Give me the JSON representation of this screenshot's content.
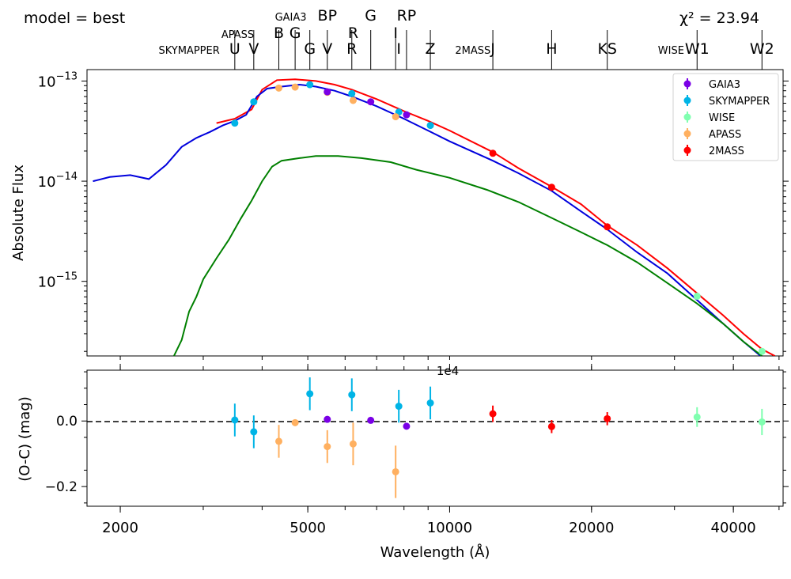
{
  "header": {
    "model_label": "model = best",
    "chi2_label": "χ² = 23.94"
  },
  "filters": {
    "rows": [
      [
        {
          "text": "GAIA3",
          "wl": 4600,
          "size": "small"
        },
        {
          "text": "BP",
          "wl": 5500,
          "size": "big"
        },
        {
          "text": "G",
          "wl": 6800,
          "size": "big"
        },
        {
          "text": "RP",
          "wl": 8100,
          "size": "big"
        }
      ],
      [
        {
          "text": "APASS",
          "wl": 3550,
          "size": "small"
        },
        {
          "text": "B",
          "wl": 4340,
          "size": "big"
        },
        {
          "text": "G",
          "wl": 4700,
          "size": "big"
        },
        {
          "text": "R",
          "wl": 6240,
          "size": "big"
        },
        {
          "text": "I",
          "wl": 7680,
          "size": "big"
        }
      ],
      [
        {
          "text": "SKYMAPPER",
          "wl": 2800,
          "size": "small"
        },
        {
          "text": "U",
          "wl": 3500,
          "size": "big"
        },
        {
          "text": "V",
          "wl": 3840,
          "size": "big"
        },
        {
          "text": "G",
          "wl": 5050,
          "size": "big"
        },
        {
          "text": "V",
          "wl": 5500,
          "size": "big"
        },
        {
          "text": "R",
          "wl": 6200,
          "size": "big"
        },
        {
          "text": "I",
          "wl": 7800,
          "size": "big"
        },
        {
          "text": "Z",
          "wl": 9100,
          "size": "big"
        },
        {
          "text": "2MASS",
          "wl": 11200,
          "size": "small"
        },
        {
          "text": "J",
          "wl": 12350,
          "size": "big"
        },
        {
          "text": "H",
          "wl": 16460,
          "size": "big"
        },
        {
          "text": "KS",
          "wl": 21600,
          "size": "big"
        },
        {
          "text": "WISE",
          "wl": 29500,
          "size": "small"
        },
        {
          "text": "W1",
          "wl": 33500,
          "size": "big"
        },
        {
          "text": "W2",
          "wl": 46000,
          "size": "big"
        }
      ]
    ],
    "tick_wavelengths": [
      3500,
      3840,
      4340,
      4700,
      5050,
      5500,
      6200,
      6800,
      7680,
      8100,
      9100,
      12350,
      16460,
      21600,
      33500,
      46000
    ]
  },
  "chart_data": [
    {
      "type": "line",
      "ylabel": "Absolute Flux",
      "yscale": "log",
      "ylim": [
        1.8e-16,
        1.3e-13
      ],
      "xscale": "log",
      "xlim": [
        1700,
        51000
      ],
      "y_tick_labels": [
        {
          "value": 1e-13,
          "label": "10",
          "exp": "−13"
        },
        {
          "value": 1e-14,
          "label": "10",
          "exp": "−14"
        },
        {
          "value": 1e-15,
          "label": "10",
          "exp": "−15"
        }
      ],
      "series": [
        {
          "name": "total model",
          "color": "#ff0000",
          "points": [
            [
              3200,
              3.8e-14
            ],
            [
              3500,
              4.2e-14
            ],
            [
              3800,
              5.2e-14
            ],
            [
              4000,
              8.2e-14
            ],
            [
              4300,
              1.02e-13
            ],
            [
              4700,
              1.04e-13
            ],
            [
              5200,
              1e-13
            ],
            [
              5700,
              9.2e-14
            ],
            [
              6200,
              8.2e-14
            ],
            [
              7000,
              6.6e-14
            ],
            [
              8000,
              5e-14
            ],
            [
              9000,
              4e-14
            ],
            [
              10000,
              3.2e-14
            ],
            [
              12350,
              1.95e-14
            ],
            [
              14000,
              1.35e-14
            ],
            [
              16460,
              8.8e-15
            ],
            [
              19000,
              5.9e-15
            ],
            [
              21600,
              3.6e-15
            ],
            [
              25000,
              2.3e-15
            ],
            [
              29000,
              1.35e-15
            ],
            [
              33500,
              7.6e-16
            ],
            [
              38000,
              4.6e-16
            ],
            [
              42000,
              3e-16
            ],
            [
              46000,
              2.1e-16
            ],
            [
              49000,
              1.8e-16
            ]
          ]
        },
        {
          "name": "component 1",
          "color": "#0000dd",
          "points": [
            [
              1750,
              1e-14
            ],
            [
              1900,
              1.1e-14
            ],
            [
              2100,
              1.15e-14
            ],
            [
              2300,
              1.05e-14
            ],
            [
              2500,
              1.45e-14
            ],
            [
              2700,
              2.2e-14
            ],
            [
              2900,
              2.7e-14
            ],
            [
              3100,
              3.1e-14
            ],
            [
              3300,
              3.6e-14
            ],
            [
              3500,
              4e-14
            ],
            [
              3700,
              4.6e-14
            ],
            [
              3900,
              7e-14
            ],
            [
              4100,
              8.4e-14
            ],
            [
              4400,
              8.8e-14
            ],
            [
              4800,
              9.2e-14
            ],
            [
              5200,
              8.8e-14
            ],
            [
              5700,
              8e-14
            ],
            [
              6200,
              7e-14
            ],
            [
              7000,
              5.6e-14
            ],
            [
              8000,
              4.2e-14
            ],
            [
              9000,
              3.2e-14
            ],
            [
              10000,
              2.5e-14
            ],
            [
              12350,
              1.6e-14
            ],
            [
              14000,
              1.2e-14
            ],
            [
              16460,
              8e-15
            ],
            [
              19000,
              5e-15
            ],
            [
              21600,
              3.3e-15
            ],
            [
              25000,
              1.95e-15
            ],
            [
              29000,
              1.2e-15
            ],
            [
              33500,
              6.5e-16
            ],
            [
              38000,
              3.8e-16
            ],
            [
              42000,
              2.5e-16
            ],
            [
              46000,
              1.75e-16
            ]
          ]
        },
        {
          "name": "component 2",
          "color": "#008000",
          "points": [
            [
              2600,
              1.8e-16
            ],
            [
              2700,
              2.6e-16
            ],
            [
              2800,
              5e-16
            ],
            [
              2900,
              7e-16
            ],
            [
              3000,
              1.05e-15
            ],
            [
              3200,
              1.7e-15
            ],
            [
              3400,
              2.6e-15
            ],
            [
              3600,
              4.2e-15
            ],
            [
              3800,
              6.4e-15
            ],
            [
              4000,
              1e-14
            ],
            [
              4200,
              1.4e-14
            ],
            [
              4400,
              1.6e-14
            ],
            [
              4800,
              1.7e-14
            ],
            [
              5200,
              1.78e-14
            ],
            [
              5800,
              1.78e-14
            ],
            [
              6500,
              1.7e-14
            ],
            [
              7500,
              1.55e-14
            ],
            [
              8500,
              1.3e-14
            ],
            [
              10000,
              1.08e-14
            ],
            [
              12000,
              8.2e-15
            ],
            [
              14000,
              6.2e-15
            ],
            [
              16460,
              4.3e-15
            ],
            [
              19000,
              3.1e-15
            ],
            [
              21600,
              2.3e-15
            ],
            [
              25000,
              1.55e-15
            ],
            [
              29000,
              9.6e-16
            ],
            [
              33500,
              6e-16
            ],
            [
              38000,
              3.8e-16
            ],
            [
              42000,
              2.5e-16
            ],
            [
              46000,
              1.8e-16
            ]
          ]
        }
      ],
      "photometry": [
        {
          "survey": "SKYMAPPER",
          "color": "#00b4e6",
          "points": [
            [
              3500,
              3.8e-14
            ],
            [
              3840,
              6.2e-14
            ],
            [
              5050,
              9.2e-14
            ],
            [
              6200,
              7.5e-14
            ],
            [
              7800,
              4.9e-14
            ],
            [
              9100,
              3.6e-14
            ]
          ]
        },
        {
          "survey": "APASS",
          "color": "#ffb060",
          "points": [
            [
              4340,
              8.5e-14
            ],
            [
              4700,
              8.7e-14
            ],
            [
              5500,
              7.7e-14
            ],
            [
              6240,
              6.4e-14
            ],
            [
              7680,
              4.4e-14
            ]
          ]
        },
        {
          "survey": "GAIA3",
          "color": "#7a00e6",
          "points": [
            [
              5500,
              7.8e-14
            ],
            [
              6800,
              6.2e-14
            ],
            [
              8100,
              4.6e-14
            ]
          ]
        },
        {
          "survey": "2MASS",
          "color": "#ff0000",
          "points": [
            [
              12350,
              1.9e-14
            ],
            [
              16460,
              8.7e-15
            ],
            [
              21600,
              3.5e-15
            ]
          ]
        },
        {
          "survey": "WISE",
          "color": "#80ffb0",
          "points": [
            [
              33500,
              7.1e-16
            ],
            [
              46000,
              2e-16
            ]
          ]
        }
      ],
      "legend": {
        "position": "top-right",
        "entries": [
          {
            "label": "GAIA3",
            "color": "#7a00e6"
          },
          {
            "label": "SKYMAPPER",
            "color": "#00b4e6"
          },
          {
            "label": "WISE",
            "color": "#80ffb0"
          },
          {
            "label": "APASS",
            "color": "#ffb060"
          },
          {
            "label": "2MASS",
            "color": "#ff0000"
          }
        ]
      }
    },
    {
      "type": "scatter",
      "ylabel": "(O-C) (mag)",
      "xlabel": "Wavelength (Å)",
      "xscale": "log",
      "xlim": [
        1700,
        51000
      ],
      "ylim": [
        -0.26,
        0.155
      ],
      "y_ticks": [
        {
          "value": 0.0,
          "label": "0.0"
        },
        {
          "value": -0.2,
          "label": "−0.2"
        }
      ],
      "x_ticks": [
        {
          "value": 2000,
          "label": "2000"
        },
        {
          "value": 5000,
          "label": "5000"
        },
        {
          "value": 10000,
          "label": "10000"
        },
        {
          "value": 20000,
          "label": "20000"
        },
        {
          "value": 40000,
          "label": "40000"
        }
      ],
      "overlap_label": "1e4",
      "zero_line": true,
      "points": [
        {
          "survey": "SKYMAPPER",
          "color": "#00b4e6",
          "x": 3500,
          "y": 0.003,
          "err": 0.05
        },
        {
          "survey": "SKYMAPPER",
          "color": "#00b4e6",
          "x": 3840,
          "y": -0.033,
          "err": 0.05
        },
        {
          "survey": "SKYMAPPER",
          "color": "#00b4e6",
          "x": 5050,
          "y": 0.083,
          "err": 0.05
        },
        {
          "survey": "SKYMAPPER",
          "color": "#00b4e6",
          "x": 6200,
          "y": 0.08,
          "err": 0.05
        },
        {
          "survey": "SKYMAPPER",
          "color": "#00b4e6",
          "x": 7800,
          "y": 0.045,
          "err": 0.05
        },
        {
          "survey": "SKYMAPPER",
          "color": "#00b4e6",
          "x": 9100,
          "y": 0.055,
          "err": 0.05
        },
        {
          "survey": "APASS",
          "color": "#ffb060",
          "x": 4340,
          "y": -0.062,
          "err": 0.05
        },
        {
          "survey": "APASS",
          "color": "#ffb060",
          "x": 4700,
          "y": -0.005,
          "err": 0.008
        },
        {
          "survey": "APASS",
          "color": "#ffb060",
          "x": 5500,
          "y": -0.078,
          "err": 0.05
        },
        {
          "survey": "APASS",
          "color": "#ffb060",
          "x": 6240,
          "y": -0.07,
          "err": 0.065
        },
        {
          "survey": "APASS",
          "color": "#ffb060",
          "x": 7680,
          "y": -0.155,
          "err": 0.08
        },
        {
          "survey": "GAIA3",
          "color": "#7a00e6",
          "x": 5500,
          "y": 0.005,
          "err": 0.005
        },
        {
          "survey": "GAIA3",
          "color": "#7a00e6",
          "x": 6800,
          "y": 0.002,
          "err": 0.005
        },
        {
          "survey": "GAIA3",
          "color": "#7a00e6",
          "x": 8100,
          "y": -0.016,
          "err": 0.005
        },
        {
          "survey": "2MASS",
          "color": "#ff0000",
          "x": 12350,
          "y": 0.022,
          "err": 0.025
        },
        {
          "survey": "2MASS",
          "color": "#ff0000",
          "x": 16460,
          "y": -0.017,
          "err": 0.02
        },
        {
          "survey": "2MASS",
          "color": "#ff0000",
          "x": 21600,
          "y": 0.007,
          "err": 0.02
        },
        {
          "survey": "WISE",
          "color": "#80ffb0",
          "x": 33500,
          "y": 0.012,
          "err": 0.03
        },
        {
          "survey": "WISE",
          "color": "#80ffb0",
          "x": 46000,
          "y": -0.003,
          "err": 0.04
        }
      ]
    }
  ]
}
